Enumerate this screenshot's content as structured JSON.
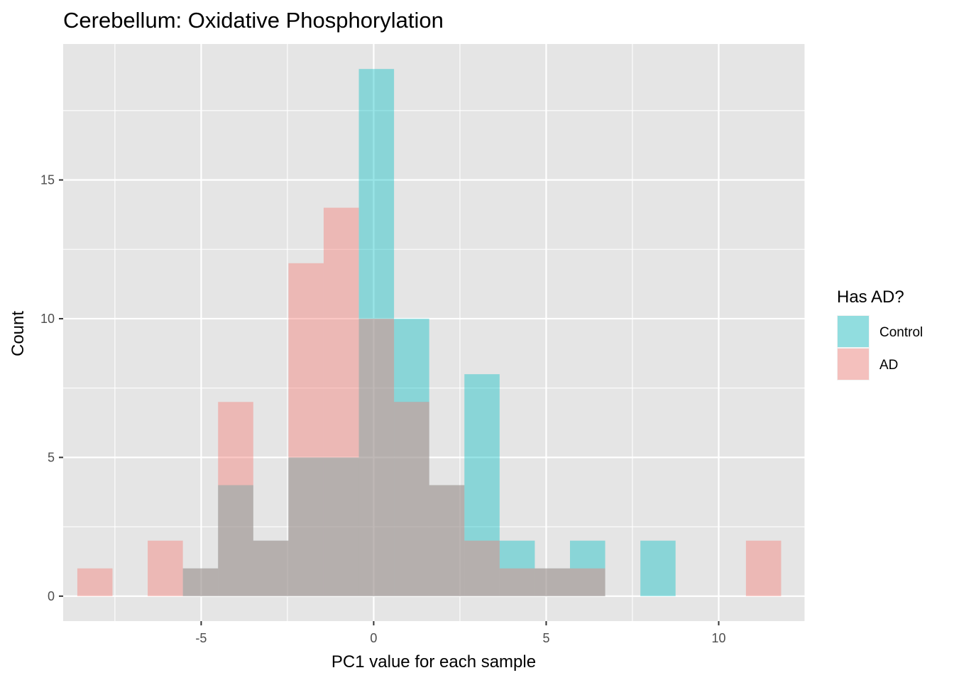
{
  "chart_data": {
    "type": "bar",
    "subtype": "overlaid-histogram",
    "title": "Cerebellum: Oxidative Phosphorylation",
    "xlabel": "PC1 value for each sample",
    "ylabel": "Count",
    "xlim": [
      -9.0,
      12.5
    ],
    "ylim": [
      -0.9,
      19.9
    ],
    "x_ticks": [
      -5,
      0,
      5,
      10
    ],
    "x_tick_labels": [
      "-5",
      "0",
      "5",
      "10"
    ],
    "y_ticks": [
      0,
      5,
      10,
      15
    ],
    "y_tick_labels": [
      "0",
      "5",
      "10",
      "15"
    ],
    "x_minor_breaks": [
      -7.5,
      -2.5,
      2.5,
      7.5,
      12.5
    ],
    "y_minor_breaks": [
      2.5,
      7.5,
      12.5,
      17.5
    ],
    "grid": true,
    "legend_position": "right",
    "legend_title": "Has AD?",
    "bin_width": 1.02,
    "bin_centers": [
      -8.08,
      -7.06,
      -6.04,
      -5.02,
      -4.0,
      -2.98,
      -1.96,
      -0.94,
      0.08,
      1.1,
      2.12,
      3.14,
      4.16,
      5.18,
      6.2,
      7.22,
      8.24,
      9.26,
      10.28,
      11.3
    ],
    "series": [
      {
        "name": "Control",
        "color": "#00BFC4",
        "values": [
          0,
          0,
          0,
          1,
          4,
          2,
          5,
          5,
          19,
          10,
          4,
          8,
          2,
          1,
          2,
          0,
          2,
          0,
          0,
          0
        ]
      },
      {
        "name": "AD",
        "color": "#F8766D",
        "values": [
          1,
          0,
          2,
          1,
          7,
          2,
          12,
          14,
          10,
          7,
          4,
          2,
          1,
          1,
          1,
          0,
          0,
          0,
          0,
          2
        ]
      }
    ],
    "bar_opacity": 0.4,
    "panel_background": "#E5E5E5",
    "grid_color": "#FFFFFF"
  }
}
